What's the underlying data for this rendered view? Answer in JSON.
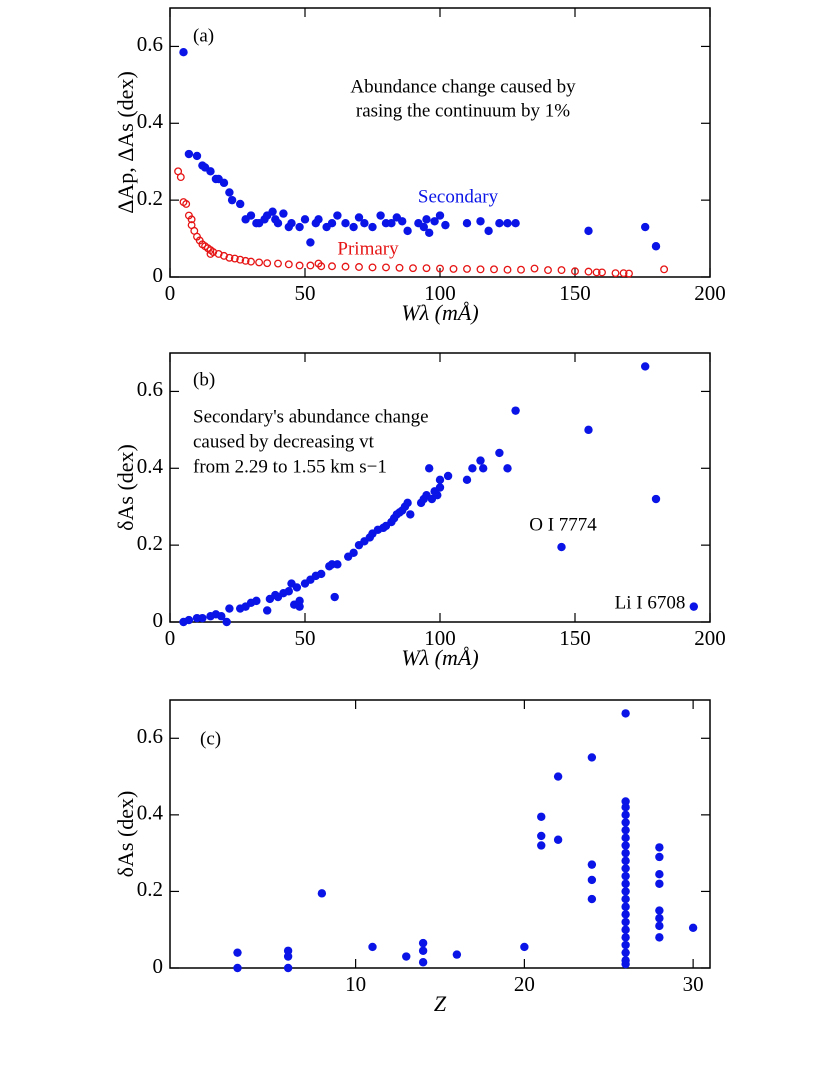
{
  "chart_data": [
    {
      "type": "scatter",
      "xlabel": "Wλ (mÅ)",
      "ylabel": "ΔAp, ΔAs (dex)",
      "xlim": [
        0,
        200
      ],
      "ylim": [
        0,
        0.7
      ],
      "xticks": [
        0,
        50,
        100,
        150,
        200
      ],
      "yticks": [
        0,
        0.2,
        0.4,
        0.6
      ],
      "annotations": [
        "(a)",
        "Abundance change caused by",
        "rasing the continuum by 1%"
      ],
      "series": [
        {
          "name": "Secondary",
          "color": "#0a14e6",
          "marker": "filled",
          "x": [
            5,
            7,
            10,
            12,
            13,
            15,
            17,
            18,
            20,
            22,
            23,
            26,
            28,
            30,
            32,
            33,
            35,
            36,
            38,
            39,
            40,
            42,
            44,
            45,
            48,
            50,
            52,
            54,
            55,
            58,
            60,
            62,
            65,
            68,
            70,
            72,
            75,
            78,
            80,
            82,
            84,
            86,
            88,
            92,
            94,
            95,
            96,
            98,
            100,
            102,
            110,
            115,
            118,
            122,
            125,
            128,
            155,
            176,
            180
          ],
          "values": [
            0.585,
            0.32,
            0.315,
            0.29,
            0.285,
            0.275,
            0.255,
            0.255,
            0.245,
            0.22,
            0.2,
            0.19,
            0.15,
            0.16,
            0.14,
            0.14,
            0.15,
            0.16,
            0.17,
            0.15,
            0.14,
            0.165,
            0.13,
            0.14,
            0.13,
            0.15,
            0.09,
            0.14,
            0.15,
            0.13,
            0.14,
            0.16,
            0.14,
            0.13,
            0.155,
            0.14,
            0.13,
            0.16,
            0.14,
            0.14,
            0.155,
            0.145,
            0.12,
            0.14,
            0.13,
            0.15,
            0.115,
            0.145,
            0.16,
            0.135,
            0.14,
            0.145,
            0.12,
            0.14,
            0.14,
            0.14,
            0.12,
            0.13,
            0.08
          ]
        },
        {
          "name": "Primary",
          "color": "#e61414",
          "marker": "open",
          "x": [
            3,
            4,
            5,
            6,
            7,
            8,
            8,
            9,
            10,
            11,
            12,
            13,
            14,
            15,
            15,
            16,
            18,
            20,
            22,
            24,
            26,
            28,
            30,
            33,
            36,
            40,
            44,
            48,
            52,
            55,
            56,
            60,
            65,
            70,
            75,
            80,
            85,
            90,
            95,
            100,
            105,
            110,
            115,
            120,
            125,
            130,
            135,
            140,
            145,
            150,
            155,
            158,
            160,
            165,
            168,
            170,
            183
          ],
          "values": [
            0.275,
            0.26,
            0.195,
            0.19,
            0.16,
            0.135,
            0.15,
            0.12,
            0.105,
            0.095,
            0.085,
            0.08,
            0.075,
            0.07,
            0.06,
            0.065,
            0.06,
            0.055,
            0.05,
            0.048,
            0.045,
            0.042,
            0.04,
            0.038,
            0.036,
            0.035,
            0.033,
            0.03,
            0.03,
            0.035,
            0.028,
            0.028,
            0.027,
            0.026,
            0.025,
            0.025,
            0.024,
            0.023,
            0.023,
            0.022,
            0.021,
            0.021,
            0.02,
            0.02,
            0.019,
            0.019,
            0.022,
            0.018,
            0.018,
            0.015,
            0.014,
            0.012,
            0.012,
            0.01,
            0.01,
            0.009,
            0.02
          ]
        }
      ]
    },
    {
      "type": "scatter",
      "xlabel": "Wλ (mÅ)",
      "ylabel": "δAs (dex)",
      "xlim": [
        0,
        200
      ],
      "ylim": [
        0,
        0.7
      ],
      "xticks": [
        0,
        50,
        100,
        150,
        200
      ],
      "yticks": [
        0,
        0.2,
        0.4,
        0.6
      ],
      "annotations": [
        "(b)",
        "Secondary's abundance change",
        "caused by decreasing vt",
        "from 2.29 to 1.55 km s−1",
        "O I 7774",
        "Li I 6708"
      ],
      "series": [
        {
          "color": "#0a14e6",
          "marker": "filled",
          "x": [
            5,
            7,
            10,
            12,
            15,
            17,
            19,
            21,
            22,
            26,
            28,
            30,
            32,
            36,
            37,
            39,
            40,
            42,
            44,
            45,
            46,
            47,
            48,
            48,
            50,
            52,
            54,
            56,
            59,
            60,
            61,
            62,
            66,
            68,
            70,
            72,
            74,
            75,
            77,
            79,
            80,
            82,
            83,
            84,
            85,
            86,
            87,
            88,
            89,
            93,
            94,
            95,
            96,
            97,
            98,
            99,
            100,
            100,
            103,
            110,
            112,
            115,
            116,
            122,
            125,
            128,
            145,
            155,
            176,
            180,
            194
          ],
          "values": [
            0,
            0.005,
            0.01,
            0.01,
            0.015,
            0.02,
            0.015,
            0,
            0.035,
            0.035,
            0.04,
            0.05,
            0.055,
            0.03,
            0.06,
            0.07,
            0.065,
            0.075,
            0.08,
            0.1,
            0.045,
            0.09,
            0.055,
            0.04,
            0.1,
            0.11,
            0.12,
            0.125,
            0.145,
            0.15,
            0.065,
            0.15,
            0.17,
            0.18,
            0.2,
            0.21,
            0.22,
            0.23,
            0.24,
            0.245,
            0.25,
            0.26,
            0.27,
            0.28,
            0.285,
            0.29,
            0.3,
            0.31,
            0.28,
            0.31,
            0.32,
            0.33,
            0.4,
            0.32,
            0.34,
            0.33,
            0.35,
            0.37,
            0.38,
            0.37,
            0.4,
            0.42,
            0.4,
            0.44,
            0.4,
            0.55,
            0.195,
            0.5,
            0.665,
            0.32,
            0.04
          ]
        }
      ]
    },
    {
      "type": "scatter",
      "xlabel": "Z",
      "ylabel": "δAs (dex)",
      "xlim": [
        -1,
        31
      ],
      "ylim": [
        0,
        0.7
      ],
      "xticks": [
        10,
        20,
        30
      ],
      "yticks": [
        0,
        0.2,
        0.4,
        0.6
      ],
      "annotations": [
        "(c)"
      ],
      "series": [
        {
          "color": "#0a14e6",
          "marker": "filled",
          "x": [
            3,
            3,
            6,
            6,
            6,
            8,
            11,
            13,
            14,
            14,
            14,
            16,
            20,
            21,
            21,
            21,
            22,
            22,
            24,
            24,
            24,
            24,
            26,
            26,
            26,
            26,
            26,
            26,
            26,
            26,
            26,
            26,
            26,
            26,
            26,
            26,
            26,
            26,
            26,
            26,
            26,
            26,
            26,
            26,
            26,
            26,
            28,
            28,
            28,
            28,
            28,
            28,
            28,
            28,
            30
          ],
          "values": [
            0.04,
            0,
            0.045,
            0.03,
            0,
            0.195,
            0.055,
            0.03,
            0.065,
            0.045,
            0.015,
            0.035,
            0.055,
            0.395,
            0.345,
            0.32,
            0.5,
            0.335,
            0.55,
            0.27,
            0.23,
            0.18,
            0.665,
            0.435,
            0.42,
            0.4,
            0.38,
            0.36,
            0.34,
            0.32,
            0.3,
            0.28,
            0.26,
            0.24,
            0.22,
            0.2,
            0.18,
            0.16,
            0.14,
            0.12,
            0.1,
            0.08,
            0.06,
            0.04,
            0.02,
            0.01,
            0.315,
            0.29,
            0.245,
            0.22,
            0.15,
            0.13,
            0.11,
            0.08,
            0.105
          ]
        }
      ]
    }
  ]
}
